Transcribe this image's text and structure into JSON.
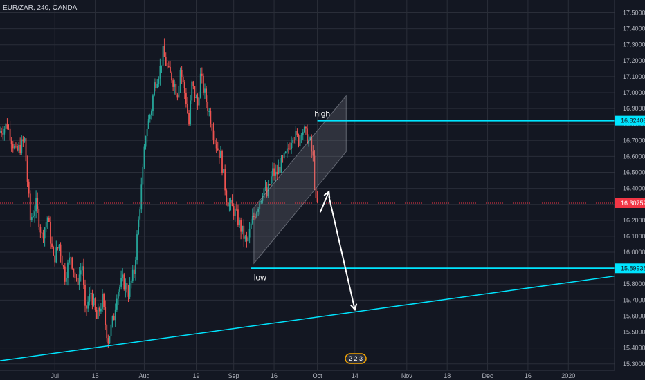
{
  "header": {
    "symbol_line": "EUR/ZAR, 240, OANDA"
  },
  "chart_data": {
    "type": "candlestick",
    "ylim": [
      15.26,
      17.58
    ],
    "y_ticks": [
      "17.50000",
      "17.40000",
      "17.30000",
      "17.20000",
      "17.10000",
      "17.00000",
      "16.90000",
      "16.80000",
      "16.70000",
      "16.60000",
      "16.50000",
      "16.40000",
      "16.30000",
      "16.20000",
      "16.10000",
      "16.00000",
      "15.90000",
      "15.80000",
      "15.70000",
      "15.60000",
      "15.50000",
      "15.40000",
      "15.30000"
    ],
    "x_ticks": [
      {
        "label": "Jul",
        "day": 13
      },
      {
        "label": "15",
        "day": 27
      },
      {
        "label": "Aug",
        "day": 44
      },
      {
        "label": "19",
        "day": 62
      },
      {
        "label": "Sep",
        "day": 75
      },
      {
        "label": "16",
        "day": 89
      },
      {
        "label": "Oct",
        "day": 104
      },
      {
        "label": "14",
        "day": 117
      },
      {
        "label": "Nov",
        "day": 135
      },
      {
        "label": "18",
        "day": 149
      },
      {
        "label": "Dec",
        "day": 163
      },
      {
        "label": "16",
        "day": 177
      },
      {
        "label": "2020",
        "day": 191
      }
    ],
    "x_day_range": [
      -6,
      207
    ],
    "ohlc_path": [
      [
        -6,
        16.75
      ],
      [
        -3,
        16.8
      ],
      [
        0,
        16.62
      ],
      [
        3,
        16.7
      ],
      [
        5,
        16.2
      ],
      [
        7,
        16.3
      ],
      [
        9,
        16.1
      ],
      [
        11,
        16.22
      ],
      [
        13,
        15.95
      ],
      [
        15,
        16.05
      ],
      [
        17,
        15.85
      ],
      [
        19,
        15.98
      ],
      [
        21,
        15.8
      ],
      [
        23,
        15.92
      ],
      [
        24,
        15.62
      ],
      [
        26,
        15.75
      ],
      [
        28,
        15.58
      ],
      [
        30,
        15.7
      ],
      [
        31,
        15.55
      ],
      [
        32,
        15.45
      ],
      [
        34,
        15.6
      ],
      [
        35,
        15.75
      ],
      [
        37,
        15.82
      ],
      [
        39,
        15.75
      ],
      [
        41,
        15.88
      ],
      [
        43,
        16.3
      ],
      [
        44,
        16.5
      ],
      [
        45,
        16.75
      ],
      [
        47,
        16.9
      ],
      [
        48,
        17.05
      ],
      [
        50,
        17.15
      ],
      [
        51,
        17.25
      ],
      [
        53,
        17.12
      ],
      [
        54,
        17.1
      ],
      [
        56,
        17.0
      ],
      [
        57,
        17.15
      ],
      [
        59,
        16.95
      ],
      [
        60,
        16.8
      ],
      [
        61,
        17.05
      ],
      [
        63,
        16.92
      ],
      [
        64,
        17.1
      ],
      [
        66,
        16.95
      ],
      [
        68,
        16.8
      ],
      [
        69,
        16.7
      ],
      [
        71,
        16.6
      ],
      [
        73,
        16.35
      ],
      [
        74,
        16.3
      ],
      [
        76,
        16.25
      ],
      [
        78,
        16.15
      ],
      [
        79,
        16.1
      ],
      [
        80,
        16.05
      ],
      [
        82,
        16.2
      ],
      [
        84,
        16.3
      ],
      [
        86,
        16.4
      ],
      [
        87,
        16.35
      ],
      [
        89,
        16.5
      ],
      [
        90,
        16.48
      ],
      [
        92,
        16.55
      ],
      [
        94,
        16.62
      ],
      [
        96,
        16.75
      ],
      [
        98,
        16.7
      ],
      [
        99,
        16.78
      ],
      [
        101,
        16.72
      ],
      [
        102,
        16.68
      ],
      [
        103,
        16.58
      ],
      [
        104,
        16.3
      ]
    ],
    "levels": [
      {
        "name": "resistance",
        "value": 16.82406,
        "label": "16.82406",
        "color": "#00e5ff"
      },
      {
        "name": "support",
        "value": 15.89938,
        "label": "15.89938",
        "color": "#00e5ff"
      },
      {
        "name": "last-price",
        "value": 16.30752,
        "label": "16.30752",
        "color": "#f23645"
      }
    ],
    "annotations": {
      "high_label": "high",
      "low_label": "low"
    },
    "trendline": {
      "from": [
        -6,
        15.32
      ],
      "to": [
        207,
        15.85
      ],
      "color": "#00e5ff"
    },
    "arrow_up": {
      "from": [
        105,
        16.25
      ],
      "to": [
        108,
        16.38
      ]
    },
    "arrow_down": {
      "from": [
        108,
        16.35
      ],
      "to": [
        117,
        15.64
      ]
    },
    "channel": [
      [
        82,
        15.93
      ],
      [
        82,
        16.28
      ],
      [
        114,
        16.98
      ],
      [
        114,
        16.63
      ]
    ],
    "badge": {
      "text": "2 2 3"
    },
    "colors": {
      "up": "#26a69a",
      "down": "#ef5350",
      "background": "#131722"
    }
  }
}
